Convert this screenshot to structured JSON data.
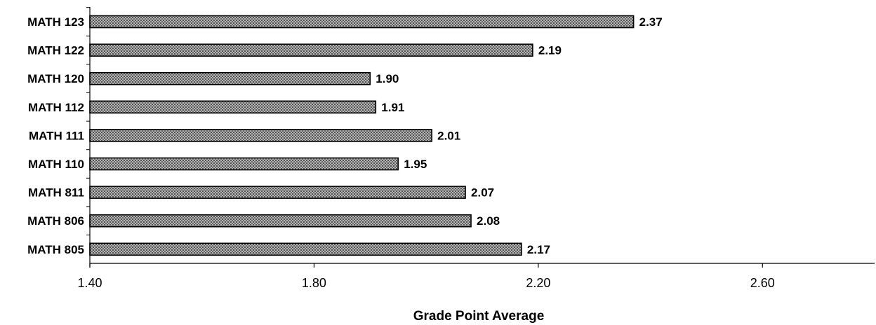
{
  "chart_data": {
    "type": "bar",
    "orientation": "horizontal",
    "title": "",
    "xlabel": "Grade Point Average",
    "ylabel": "",
    "xlim": [
      1.4,
      2.8
    ],
    "xticks": [
      1.4,
      1.8,
      2.2,
      2.6
    ],
    "xtick_labels": [
      "1.40",
      "1.80",
      "2.20",
      "2.60"
    ],
    "categories": [
      "MATH 123",
      "MATH 122",
      "MATH 120",
      "MATH 112",
      "MATH 111",
      "MATH 110",
      "MATH 811",
      "MATH 806",
      "MATH 805"
    ],
    "values": [
      2.37,
      2.19,
      1.9,
      1.91,
      2.01,
      1.95,
      2.07,
      2.08,
      2.17
    ],
    "value_labels": [
      "2.37",
      "2.19",
      "1.90",
      "1.91",
      "2.01",
      "1.95",
      "2.07",
      "2.08",
      "2.17"
    ],
    "bar_color": "#9a9a9a",
    "bar_pattern": "dotted-crosshatch",
    "grid": false,
    "legend": "none"
  }
}
